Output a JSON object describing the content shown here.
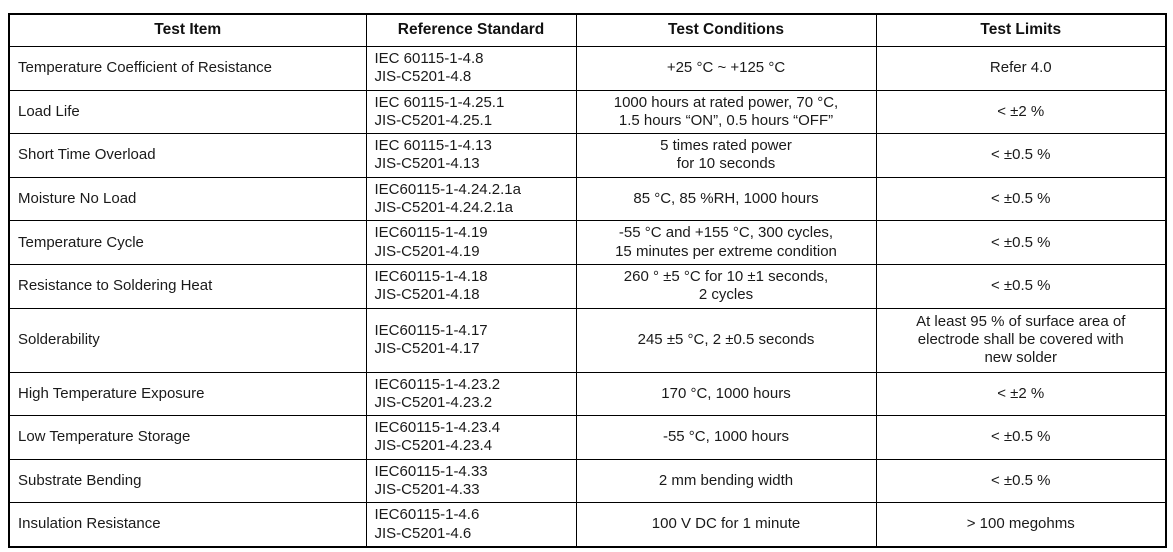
{
  "table": {
    "columns": [
      "Test Item",
      "Reference Standard",
      "Test Conditions",
      "Test Limits"
    ],
    "rows": [
      {
        "item": "Temperature Coefficient of Resistance",
        "reference": [
          "IEC 60115-1-4.8",
          "JIS-C5201-4.8"
        ],
        "conditions": [
          "+25 °C ~ +125 °C"
        ],
        "limits": [
          "Refer 4.0"
        ]
      },
      {
        "item": "Load Life",
        "reference": [
          "IEC 60115-1-4.25.1",
          "JIS-C5201-4.25.1"
        ],
        "conditions": [
          "1000 hours at rated power, 70 °C,",
          "1.5 hours “ON”, 0.5 hours “OFF”"
        ],
        "limits": [
          "< ±2 %"
        ]
      },
      {
        "item": "Short Time Overload",
        "reference": [
          "IEC 60115-1-4.13",
          "JIS-C5201-4.13"
        ],
        "conditions": [
          "5 times rated power",
          "for 10 seconds"
        ],
        "limits": [
          "< ±0.5 %"
        ]
      },
      {
        "item": "Moisture No Load",
        "reference": [
          "IEC60115-1-4.24.2.1a",
          "JIS-C5201-4.24.2.1a"
        ],
        "conditions": [
          "85 °C, 85 %RH, 1000 hours"
        ],
        "limits": [
          "< ±0.5 %"
        ]
      },
      {
        "item": "Temperature Cycle",
        "reference": [
          "IEC60115-1-4.19",
          "JIS-C5201-4.19"
        ],
        "conditions": [
          "-55 °C and +155 °C, 300 cycles,",
          "15 minutes per extreme condition"
        ],
        "limits": [
          "< ±0.5 %"
        ]
      },
      {
        "item": "Resistance to Soldering Heat",
        "reference": [
          "IEC60115-1-4.18",
          "JIS-C5201-4.18"
        ],
        "conditions": [
          "260 ° ±5 °C for 10 ±1 seconds,",
          "2 cycles"
        ],
        "limits": [
          "< ±0.5 %"
        ]
      },
      {
        "item": "Solderability",
        "reference": [
          "IEC60115-1-4.17",
          "JIS-C5201-4.17"
        ],
        "conditions": [
          "245 ±5 °C, 2 ±0.5 seconds"
        ],
        "limits": [
          "At least 95 % of surface area of",
          "electrode shall be covered with",
          "new solder"
        ]
      },
      {
        "item": "High Temperature Exposure",
        "reference": [
          "IEC60115-1-4.23.2",
          "JIS-C5201-4.23.2"
        ],
        "conditions": [
          "170 °C, 1000 hours"
        ],
        "limits": [
          "< ±2 %"
        ]
      },
      {
        "item": "Low Temperature Storage",
        "reference": [
          "IEC60115-1-4.23.4",
          "JIS-C5201-4.23.4"
        ],
        "conditions": [
          "-55 °C, 1000 hours"
        ],
        "limits": [
          "< ±0.5 %"
        ]
      },
      {
        "item": "Substrate Bending",
        "reference": [
          "IEC60115-1-4.33",
          "JIS-C5201-4.33"
        ],
        "conditions": [
          "2 mm bending width"
        ],
        "limits": [
          "< ±0.5 %"
        ]
      },
      {
        "item": "Insulation Resistance",
        "reference": [
          "IEC60115-1-4.6",
          "JIS-C5201-4.6"
        ],
        "conditions": [
          "100 V DC for 1 minute"
        ],
        "limits": [
          "> 100 megohms"
        ]
      }
    ]
  }
}
